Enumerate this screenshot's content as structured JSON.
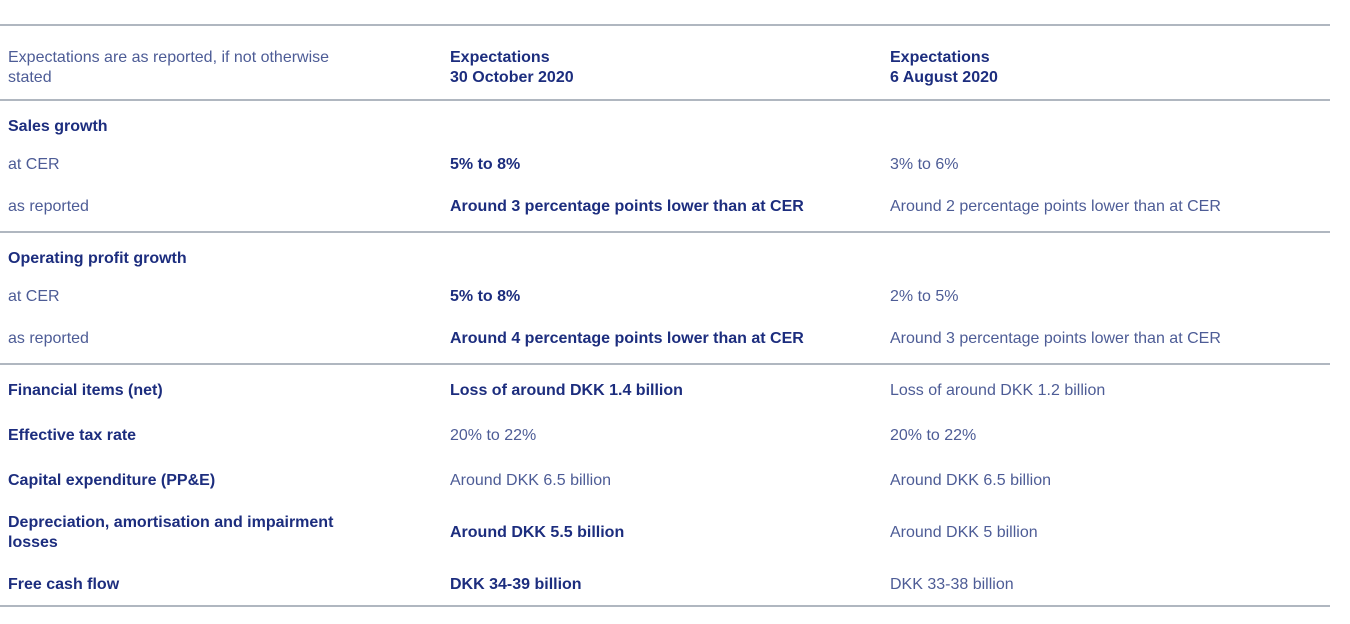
{
  "colors": {
    "text_primary_navy": "#1c2d7e",
    "text_secondary_slate": "#4d5c96",
    "divider_gray": "#b0b7c0",
    "background": "#ffffff"
  },
  "table": {
    "header": {
      "note": "Expectations are as reported, if not otherwise\nstated",
      "columns": [
        {
          "label": "Expectations\n30 October 2020"
        },
        {
          "label": "Expectations\n6 August 2020"
        }
      ]
    },
    "rows": [
      {
        "kind": "section",
        "label": "Sales growth",
        "label_bold": true,
        "current": "",
        "previous": ""
      },
      {
        "kind": "data",
        "label": "at CER",
        "label_bold": false,
        "current": "5% to 8%",
        "current_bold": true,
        "previous": "3% to 6%"
      },
      {
        "kind": "data",
        "label": "as reported",
        "label_bold": false,
        "current": "Around 3 percentage points lower than at CER",
        "current_bold": true,
        "previous": "Around 2 percentage points lower than at CER"
      },
      {
        "kind": "section",
        "label": "Operating profit growth",
        "label_bold": true,
        "current": "",
        "previous": ""
      },
      {
        "kind": "data",
        "label": "at CER",
        "label_bold": false,
        "current": "5% to 8%",
        "current_bold": true,
        "previous": "2% to 5%"
      },
      {
        "kind": "data",
        "label": "as reported",
        "label_bold": false,
        "current": "Around 4 percentage points lower than at CER",
        "current_bold": true,
        "previous": "Around 3 percentage points lower than at CER"
      },
      {
        "kind": "data",
        "label": "Financial items (net)",
        "label_bold": true,
        "current": "Loss of around DKK 1.4 billion",
        "current_bold": true,
        "previous": "Loss of around DKK 1.2 billion"
      },
      {
        "kind": "data",
        "label": "Effective tax rate",
        "label_bold": true,
        "current": "20% to 22%",
        "current_bold": false,
        "previous": "20% to 22%"
      },
      {
        "kind": "data",
        "label": "Capital expenditure (PP&E)",
        "label_bold": true,
        "current": "Around DKK 6.5 billion",
        "current_bold": false,
        "previous": "Around DKK 6.5 billion"
      },
      {
        "kind": "data",
        "label": "Depreciation, amortisation and impairment\nlosses",
        "label_bold": true,
        "current": "Around DKK 5.5 billion",
        "current_bold": true,
        "previous": "Around DKK 5 billion"
      },
      {
        "kind": "data",
        "label": "Free cash flow",
        "label_bold": true,
        "current": "DKK 34-39 billion",
        "current_bold": true,
        "previous": "DKK 33-38 billion"
      }
    ]
  }
}
